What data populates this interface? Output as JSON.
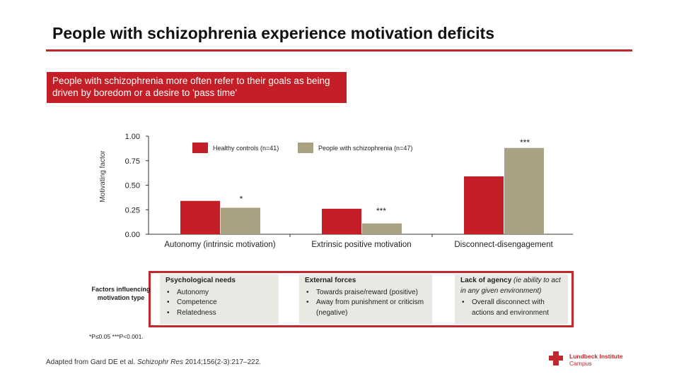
{
  "slide": {
    "title": "People with schizophrenia experience motivation deficits",
    "callout": "People with schizophrenia more often refer to their goals as being driven by boredom or a desire to 'pass time'",
    "factors_label": "Factors influencing motivation type",
    "sig_note": "*P≤0.05 ***P<0.001.",
    "source_prefix": "Adapted from Gard DE et al. ",
    "source_journal": "Schizophr Res",
    "source_suffix": " 2014;156(2-3):217–222.",
    "logo_line1": "Lundbeck Institute",
    "logo_line2": "Campus"
  },
  "factors": [
    {
      "heading": "Psychological needs",
      "heading_extra": "",
      "items": [
        "Autonomy",
        "Competence",
        "Relatedness"
      ]
    },
    {
      "heading": "External forces",
      "heading_extra": "",
      "items": [
        "Towards praise/reward (positive)",
        "Away from punishment or criticism (negative)"
      ]
    },
    {
      "heading": "Lack of agency",
      "heading_extra": "(ie ability to act in any given environment)",
      "items": [
        "Overall disconnect with actions and environment"
      ]
    }
  ],
  "chart_data": {
    "type": "bar",
    "ylabel": "Motivating factor",
    "ylim": [
      0,
      1.0
    ],
    "yticks": [
      "0.00",
      "0.25",
      "0.50",
      "0.75",
      "1.00"
    ],
    "categories": [
      "Autonomy (intrinsic motivation)",
      "Extrinsic positive motivation",
      "Disconnect-disengagement"
    ],
    "series": [
      {
        "name": "Healthy controls (n=41)",
        "color": "#c41f26",
        "values": [
          0.34,
          0.26,
          0.59
        ]
      },
      {
        "name": "People with schizophrenia (n=47)",
        "color": "#a8a283",
        "values": [
          0.27,
          0.11,
          0.88
        ]
      }
    ],
    "significance": [
      "*",
      "***",
      "***"
    ],
    "legend": "top"
  }
}
